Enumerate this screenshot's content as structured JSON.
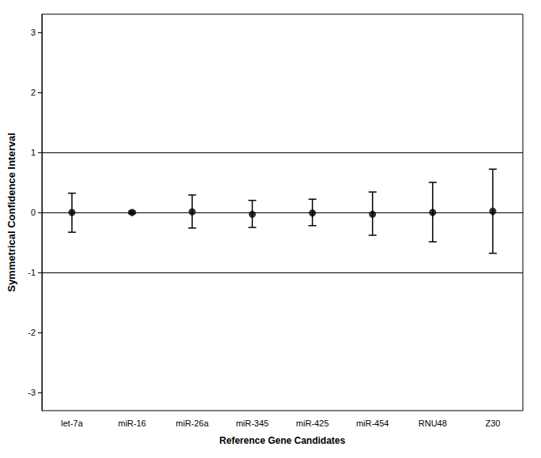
{
  "chart_data": {
    "type": "scatter",
    "x_label": "Reference Gene Candidates",
    "y_label": "Symmetrical Confidence Interval",
    "categories": [
      "let-7a",
      "miR-16",
      "miR-26a",
      "miR-345",
      "miR-425",
      "miR-454",
      "RNU48",
      "Z30"
    ],
    "values": [
      0,
      0,
      0.01,
      -0.03,
      -0.01,
      -0.03,
      0,
      0.02
    ],
    "ci_lower": [
      -0.33,
      -0.02,
      -0.26,
      -0.25,
      -0.22,
      -0.38,
      -0.49,
      -0.68
    ],
    "ci_upper": [
      0.32,
      0.02,
      0.29,
      0.2,
      0.22,
      0.34,
      0.5,
      0.72
    ],
    "reference_lines": [
      1,
      -1
    ],
    "color": "#000000",
    "marker": "circle",
    "ylim": [
      -3.3,
      3.3
    ],
    "yticks": [
      -3,
      -2,
      -1,
      0,
      1,
      2,
      3
    ],
    "grid": false
  }
}
